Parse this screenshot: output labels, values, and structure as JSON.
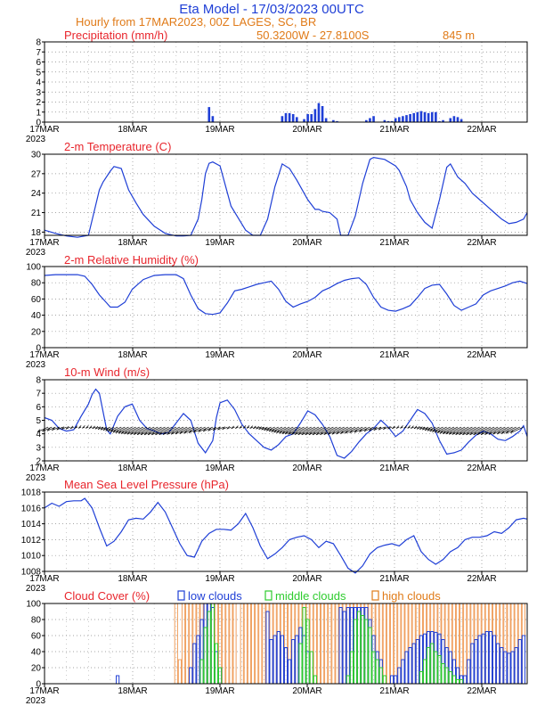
{
  "header": {
    "title": "Eta Model - 17/03/2023 00UTC",
    "line2": "Hourly from 17MAR2023, 00Z  LAGES, SC, BR",
    "coords": "50.3200W - 27.8100S",
    "elevation": "845  m"
  },
  "x_axis": {
    "day_labels": [
      "17MAR",
      "18MAR",
      "19MAR",
      "20MAR",
      "21MAR",
      "22MAR"
    ],
    "year_label": "2023",
    "hours_total": 132
  },
  "colors": {
    "line": "#1f3fd6",
    "title_red": "#e8262d",
    "orange": "#e07b19",
    "low": "#1f3fd6",
    "middle": "#2ecc2e",
    "high": "#f0a060",
    "wind": "#000000"
  },
  "chart_data": [
    {
      "type": "bar",
      "title": "Precipitation (mm/h)",
      "ylim": [
        0,
        8
      ],
      "yticks": [
        0,
        1,
        2,
        3,
        4,
        5,
        6,
        7,
        8
      ],
      "x": [
        45,
        46,
        65,
        66,
        67,
        68,
        69,
        71,
        72,
        73,
        74,
        75,
        76,
        77,
        79,
        80,
        88,
        89,
        90,
        93,
        94,
        95,
        96,
        97,
        98,
        99,
        100,
        101,
        102,
        103,
        104,
        105,
        106,
        107,
        108,
        109,
        111,
        112,
        113,
        114
      ],
      "values": [
        1.5,
        0.6,
        0.6,
        0.9,
        0.9,
        0.8,
        0.5,
        0.3,
        0.8,
        0.8,
        1.3,
        1.9,
        1.6,
        0.4,
        0.2,
        0.1,
        0.2,
        0.4,
        0.6,
        0.2,
        0.1,
        0.1,
        0.4,
        0.5,
        0.6,
        0.7,
        0.8,
        0.9,
        1.0,
        1.1,
        1.0,
        0.9,
        1.0,
        1.0,
        0.1,
        0.2,
        0.4,
        0.6,
        0.5,
        0.3
      ]
    },
    {
      "type": "line",
      "title": "2-m Temperature (C)",
      "ylim": [
        17.5,
        30
      ],
      "yticks": [
        18,
        21,
        24,
        27,
        30
      ],
      "x": [
        0,
        3,
        6,
        9,
        12,
        15,
        16,
        18,
        19,
        21,
        23,
        25,
        27,
        30,
        33,
        36,
        38,
        40,
        42,
        43,
        44,
        45,
        46,
        48,
        51,
        55,
        57,
        59,
        61,
        63,
        65,
        67,
        69,
        70,
        72,
        74,
        75,
        76,
        78,
        80,
        81,
        83,
        85,
        87,
        89,
        90,
        93,
        96,
        97,
        99,
        100,
        102,
        104,
        106,
        108,
        110,
        111,
        113,
        115,
        117,
        119,
        121,
        123,
        125,
        127,
        129,
        131,
        132
      ],
      "values": [
        18.3,
        17.8,
        17.4,
        17.2,
        17.5,
        24.5,
        25.7,
        27.4,
        28.1,
        27.8,
        24.5,
        22.5,
        20.7,
        18.9,
        17.8,
        17.4,
        17.4,
        17.5,
        20.0,
        23.0,
        27.0,
        28.6,
        28.8,
        28.2,
        22.0,
        18.3,
        17.5,
        17.5,
        20.0,
        25.0,
        28.5,
        27.8,
        26.0,
        25.0,
        23.0,
        21.5,
        21.5,
        21.2,
        21.0,
        20.0,
        17.5,
        17.5,
        20.5,
        25.5,
        29.2,
        29.5,
        29.2,
        28.2,
        27.5,
        25.0,
        23.0,
        21.0,
        19.5,
        18.6,
        23.0,
        28.0,
        28.5,
        26.5,
        25.5,
        24.0,
        23.0,
        22.0,
        21.0,
        20.0,
        19.3,
        19.5,
        20.0,
        21.0
      ]
    },
    {
      "type": "line",
      "title": "2-m Relative Humidity (%)",
      "ylim": [
        0,
        100
      ],
      "yticks": [
        0,
        20,
        40,
        60,
        80,
        100
      ],
      "x": [
        0,
        3,
        6,
        9,
        11,
        13,
        15,
        17,
        18,
        20,
        22,
        24,
        27,
        30,
        33,
        36,
        38,
        40,
        42,
        44,
        46,
        48,
        50,
        52,
        54,
        56,
        58,
        60,
        62,
        64,
        66,
        68,
        70,
        72,
        74,
        76,
        78,
        80,
        82,
        84,
        86,
        88,
        90,
        92,
        94,
        96,
        98,
        100,
        102,
        104,
        106,
        108,
        110,
        112,
        114,
        116,
        118,
        120,
        122,
        124,
        126,
        128,
        130,
        132
      ],
      "values": [
        89,
        90,
        90,
        90,
        88,
        78,
        65,
        55,
        50,
        50,
        56,
        72,
        84,
        89,
        90,
        90,
        85,
        65,
        48,
        42,
        41,
        43,
        55,
        70,
        72,
        75,
        78,
        80,
        82,
        72,
        57,
        50,
        54,
        57,
        62,
        70,
        74,
        79,
        83,
        85,
        86,
        78,
        62,
        50,
        46,
        45,
        48,
        52,
        62,
        73,
        77,
        78,
        66,
        52,
        46,
        50,
        54,
        65,
        70,
        73,
        76,
        80,
        82,
        79
      ]
    },
    {
      "type": "line",
      "title": "10-m Wind (m/s)",
      "ylim": [
        2,
        8
      ],
      "yticks": [
        2,
        3,
        4,
        5,
        6,
        7,
        8
      ],
      "barb_row_value": 4.5,
      "x": [
        0,
        2,
        4,
        6,
        8,
        10,
        12,
        13,
        14,
        15,
        17,
        18,
        20,
        22,
        24,
        26,
        28,
        30,
        32,
        34,
        36,
        38,
        40,
        42,
        44,
        46,
        47,
        48,
        50,
        52,
        54,
        56,
        58,
        60,
        62,
        64,
        66,
        68,
        70,
        72,
        74,
        76,
        78,
        80,
        82,
        84,
        86,
        88,
        90,
        92,
        94,
        96,
        98,
        100,
        102,
        104,
        106,
        108,
        110,
        112,
        114,
        116,
        118,
        120,
        122,
        124,
        126,
        128,
        130,
        131,
        132
      ],
      "values": [
        5.2,
        5.0,
        4.4,
        4.2,
        4.3,
        5.3,
        6.2,
        6.9,
        7.3,
        7.0,
        4.3,
        4.0,
        5.3,
        6.0,
        6.2,
        5.0,
        4.4,
        4.2,
        4.0,
        4.1,
        4.8,
        5.5,
        5.0,
        3.3,
        2.6,
        3.5,
        5.2,
        6.3,
        6.5,
        5.8,
        4.7,
        4.0,
        3.5,
        3.0,
        2.8,
        3.2,
        3.8,
        4.0,
        4.8,
        5.7,
        5.4,
        4.7,
        3.8,
        2.4,
        2.2,
        2.7,
        3.4,
        4.0,
        4.4,
        5.0,
        4.5,
        3.8,
        4.2,
        5.0,
        5.8,
        5.5,
        4.8,
        3.5,
        2.5,
        2.6,
        2.8,
        3.4,
        3.9,
        4.2,
        4.0,
        3.6,
        3.5,
        3.8,
        4.2,
        4.6,
        3.8
      ]
    },
    {
      "type": "line",
      "title": "Mean Sea Level Pressure (hPa)",
      "ylim": [
        1008,
        1018
      ],
      "yticks": [
        1008,
        1010,
        1012,
        1014,
        1016,
        1018
      ],
      "x": [
        0,
        2,
        4,
        6,
        8,
        10,
        11,
        13,
        15,
        17,
        19,
        21,
        23,
        25,
        27,
        29,
        31,
        33,
        35,
        37,
        39,
        41,
        43,
        45,
        47,
        49,
        51,
        53,
        55,
        57,
        59,
        61,
        63,
        65,
        67,
        69,
        71,
        73,
        75,
        77,
        79,
        81,
        83,
        85,
        87,
        89,
        91,
        93,
        95,
        97,
        99,
        101,
        103,
        105,
        107,
        109,
        111,
        113,
        115,
        117,
        119,
        121,
        123,
        125,
        127,
        129,
        131,
        132
      ],
      "values": [
        1016.0,
        1016.6,
        1016.2,
        1016.8,
        1016.9,
        1016.9,
        1017.2,
        1016.0,
        1013.5,
        1011.2,
        1011.8,
        1013.0,
        1014.5,
        1014.7,
        1014.6,
        1015.5,
        1016.7,
        1015.5,
        1013.5,
        1011.5,
        1010.0,
        1009.8,
        1011.8,
        1012.8,
        1013.3,
        1013.3,
        1013.2,
        1014.0,
        1015.3,
        1013.5,
        1011.2,
        1009.6,
        1010.2,
        1011.0,
        1012.0,
        1012.3,
        1012.5,
        1012.0,
        1011.0,
        1011.8,
        1011.5,
        1010.0,
        1008.4,
        1007.8,
        1008.7,
        1010.2,
        1011.0,
        1011.3,
        1011.5,
        1011.2,
        1012.0,
        1012.5,
        1010.5,
        1009.5,
        1008.9,
        1009.5,
        1010.5,
        1011.0,
        1012.0,
        1012.3,
        1012.3,
        1012.5,
        1013.0,
        1012.8,
        1013.5,
        1014.5,
        1014.7,
        1014.6
      ]
    },
    {
      "type": "bar",
      "title": "Cloud Cover (%)",
      "ylim": [
        0,
        100
      ],
      "yticks": [
        0,
        20,
        40,
        60,
        80,
        100
      ],
      "legend": [
        "low clouds",
        "middle clouds",
        "high clouds"
      ],
      "series": [
        {
          "name": "high clouds",
          "x": [
            36,
            37,
            38,
            39,
            40,
            41,
            42,
            43,
            44,
            45,
            46,
            47,
            48,
            49,
            50,
            51,
            52,
            53,
            54,
            55,
            56,
            57,
            58,
            59,
            60,
            61,
            62,
            63,
            64,
            65,
            66,
            67,
            68,
            69,
            70,
            71,
            72,
            73,
            74,
            75,
            76,
            77,
            78,
            79,
            80,
            81,
            82,
            83,
            84,
            85,
            86,
            87,
            88,
            89,
            90,
            91,
            92,
            93,
            94,
            95,
            96,
            97,
            98,
            99,
            100,
            101,
            102,
            103,
            104,
            105,
            106,
            107,
            108,
            109,
            110,
            111,
            112,
            113,
            114,
            115,
            116,
            117,
            118,
            119,
            120,
            121,
            122,
            123,
            124,
            125,
            126,
            127,
            128,
            129,
            130,
            131
          ],
          "values": [
            100,
            30,
            100,
            100,
            100,
            100,
            100,
            100,
            100,
            100,
            100,
            100,
            100,
            100,
            100,
            100,
            100,
            0,
            100,
            100,
            100,
            100,
            100,
            100,
            100,
            100,
            100,
            100,
            100,
            100,
            100,
            100,
            100,
            100,
            100,
            100,
            100,
            100,
            100,
            100,
            100,
            100,
            100,
            100,
            100,
            100,
            100,
            100,
            100,
            100,
            100,
            100,
            100,
            100,
            100,
            100,
            100,
            100,
            100,
            100,
            100,
            100,
            100,
            100,
            100,
            100,
            100,
            100,
            100,
            100,
            100,
            100,
            100,
            100,
            100,
            100,
            100,
            100,
            100,
            100,
            100,
            100,
            100,
            100,
            100,
            100,
            100,
            100,
            100,
            100,
            100,
            100,
            100,
            100,
            100,
            100
          ]
        },
        {
          "name": "low clouds",
          "x": [
            20,
            40,
            41,
            42,
            43,
            44,
            45,
            46,
            47,
            48,
            61,
            62,
            63,
            64,
            65,
            66,
            67,
            68,
            69,
            70,
            71,
            72,
            81,
            82,
            83,
            84,
            85,
            86,
            87,
            88,
            89,
            90,
            91,
            92,
            95,
            96,
            97,
            98,
            99,
            100,
            101,
            102,
            103,
            104,
            105,
            106,
            107,
            108,
            109,
            110,
            111,
            112,
            113,
            114,
            115,
            116,
            117,
            118,
            119,
            120,
            121,
            122,
            123,
            124,
            125,
            126,
            127,
            128,
            129,
            130,
            131
          ],
          "values": [
            10,
            20,
            50,
            60,
            80,
            100,
            100,
            95,
            40,
            20,
            90,
            55,
            60,
            65,
            60,
            45,
            30,
            55,
            60,
            70,
            60,
            40,
            95,
            90,
            95,
            95,
            95,
            95,
            95,
            95,
            80,
            60,
            40,
            30,
            10,
            10,
            20,
            30,
            40,
            45,
            50,
            55,
            60,
            62,
            65,
            65,
            64,
            62,
            55,
            45,
            40,
            30,
            20,
            10,
            10,
            30,
            50,
            55,
            60,
            62,
            65,
            65,
            60,
            50,
            45,
            40,
            38,
            40,
            45,
            55,
            60
          ]
        },
        {
          "name": "middle clouds",
          "x": [
            43,
            44,
            45,
            46,
            47,
            48,
            70,
            71,
            72,
            73,
            74,
            83,
            84,
            85,
            86,
            87,
            88,
            89,
            90,
            91,
            92,
            93,
            103,
            104,
            105,
            106,
            107,
            108,
            109,
            110,
            111,
            112,
            113,
            114
          ],
          "values": [
            30,
            70,
            90,
            100,
            50,
            20,
            50,
            95,
            80,
            40,
            10,
            10,
            40,
            80,
            90,
            85,
            80,
            70,
            40,
            30,
            20,
            10,
            15,
            30,
            45,
            50,
            40,
            35,
            25,
            20,
            15,
            10,
            5,
            5
          ]
        }
      ]
    }
  ]
}
